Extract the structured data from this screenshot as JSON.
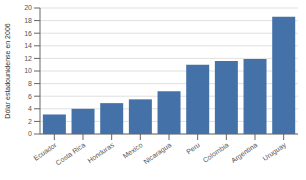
{
  "chart_data": {
    "type": "bar",
    "categories": [
      "Ecuador",
      "Costa Rica",
      "Honduras",
      "Mexico",
      "Nicaragua",
      "Peru",
      "Colombia",
      "Argentina",
      "Uruguay"
    ],
    "values": [
      3.1,
      4.0,
      4.9,
      5.5,
      6.8,
      11.0,
      11.6,
      11.9,
      18.6
    ],
    "color": "#4472a8",
    "ylabel": "Dólar estadounidense en 2006",
    "ylim": [
      0,
      20
    ],
    "yticks": [
      0,
      2,
      4,
      6,
      8,
      10,
      12,
      14,
      16,
      18,
      20
    ],
    "grid": true
  }
}
